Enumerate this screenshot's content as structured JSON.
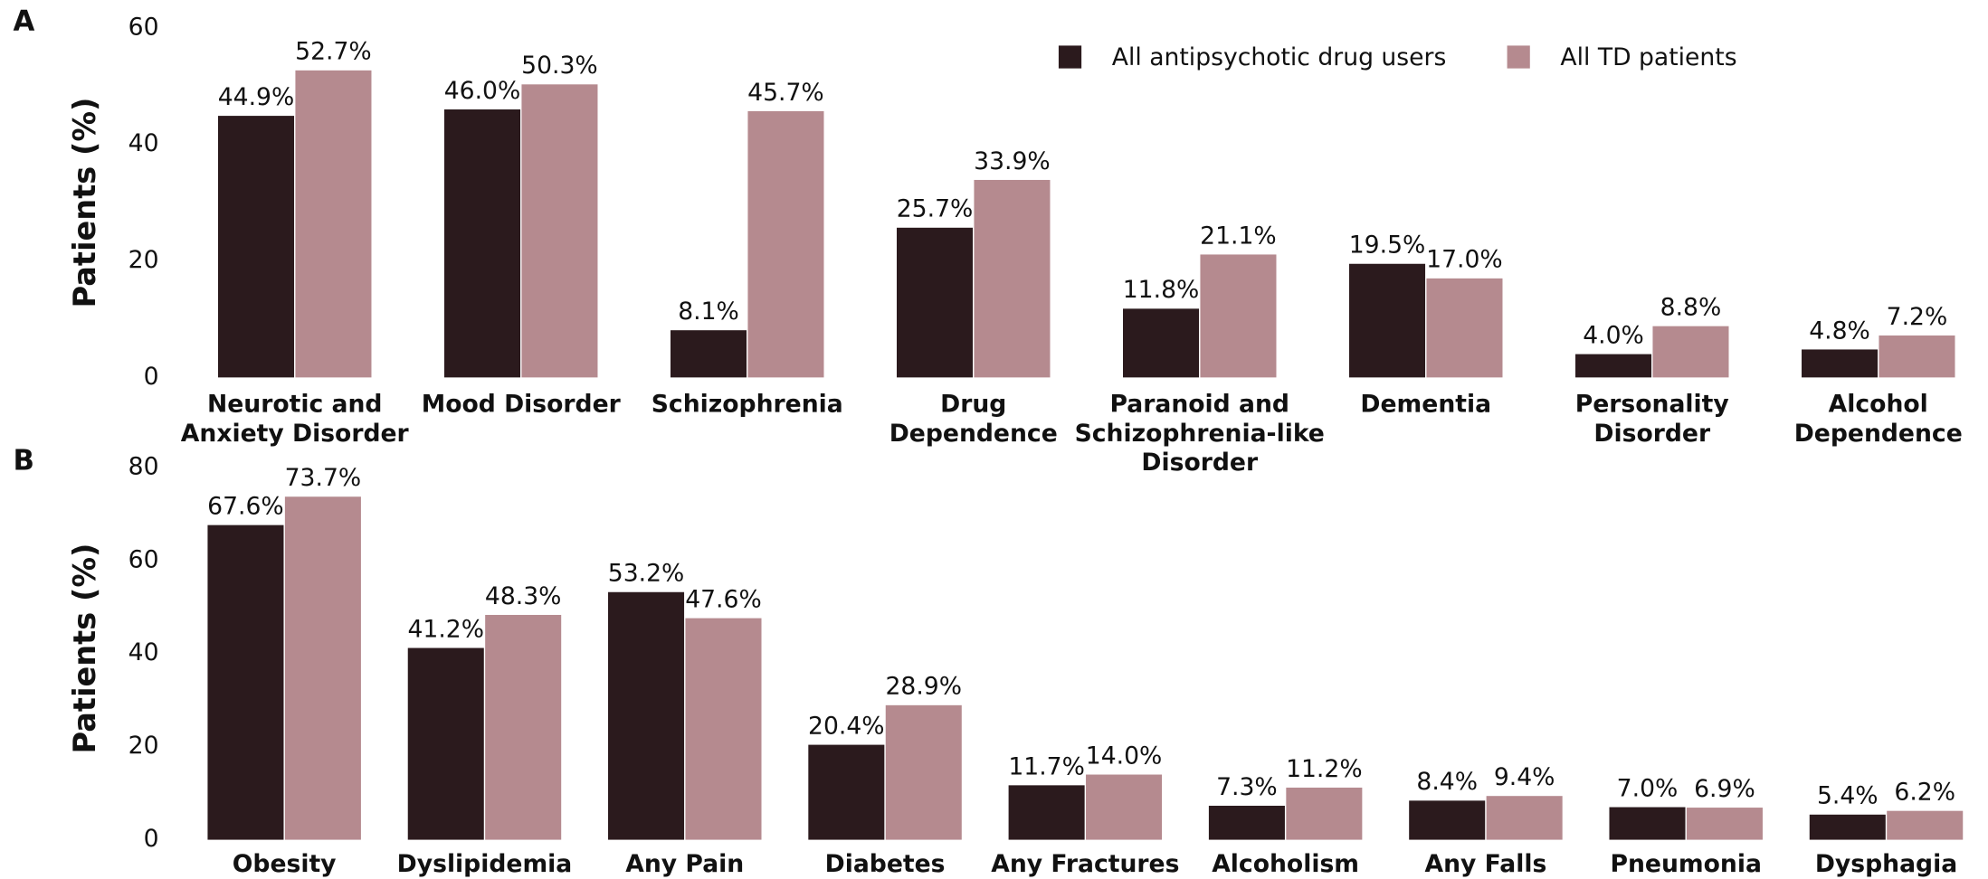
{
  "chart_data": [
    {
      "type": "bar",
      "label": "A",
      "y_label": "Patients (%)",
      "categories": [
        [
          "Neurotic and",
          "Anxiety Disorder"
        ],
        [
          "Mood Disorder"
        ],
        [
          "Schizophrenia"
        ],
        [
          "Drug",
          "Dependence"
        ],
        [
          "Paranoid and",
          "Schizophrenia-like",
          "Disorder"
        ],
        [
          "Dementia"
        ],
        [
          "Personality",
          "Disorder"
        ],
        [
          "Alcohol",
          "Dependence"
        ]
      ],
      "series": [
        {
          "name": "All antipsychotic drug users",
          "color": "#2b1a1d",
          "values": [
            44.9,
            46.0,
            8.1,
            25.7,
            11.8,
            19.5,
            4.0,
            4.8
          ],
          "value_labels": [
            "44.9%",
            "46.0%",
            "8.1%",
            "25.7%",
            "11.8%",
            "19.5%",
            "4.0%",
            "4.8%"
          ]
        },
        {
          "name": "All TD patients",
          "color": "#b58a8f",
          "values": [
            52.7,
            50.3,
            45.7,
            33.9,
            21.1,
            17.0,
            8.8,
            7.2
          ],
          "value_labels": [
            "52.7%",
            "50.3%",
            "45.7%",
            "33.9%",
            "21.1%",
            "17.0%",
            "8.8%",
            "7.2%"
          ]
        }
      ],
      "ylim": [
        0,
        60
      ],
      "yticks": [
        0,
        20,
        40,
        60
      ],
      "legend": "top-right"
    },
    {
      "type": "bar",
      "label": "B",
      "y_label": "Patients (%)",
      "categories": [
        [
          "Obesity"
        ],
        [
          "Dyslipidemia"
        ],
        [
          "Any Pain"
        ],
        [
          "Diabetes"
        ],
        [
          "Any Fractures"
        ],
        [
          "Alcoholism"
        ],
        [
          "Any Falls"
        ],
        [
          "Pneumonia"
        ],
        [
          "Dysphagia"
        ]
      ],
      "series": [
        {
          "color": "#2b1a1d",
          "values": [
            67.6,
            41.2,
            53.2,
            20.4,
            11.7,
            7.3,
            8.4,
            7.0,
            5.4
          ],
          "value_labels": [
            "67.6%",
            "41.2%",
            "53.2%",
            "20.4%",
            "11.7%",
            "7.3%",
            "8.4%",
            "7.0%",
            "5.4%"
          ]
        },
        {
          "color": "#b58a8f",
          "values": [
            73.7,
            48.3,
            47.6,
            28.9,
            14.0,
            11.2,
            9.4,
            6.9,
            6.2
          ],
          "value_labels": [
            "73.7%",
            "48.3%",
            "47.6%",
            "28.9%",
            "14.0%",
            "11.2%",
            "9.4%",
            "6.9%",
            "6.2%"
          ]
        }
      ],
      "ylim": [
        0,
        80
      ],
      "yticks": [
        0,
        20,
        40,
        60,
        80
      ]
    }
  ]
}
